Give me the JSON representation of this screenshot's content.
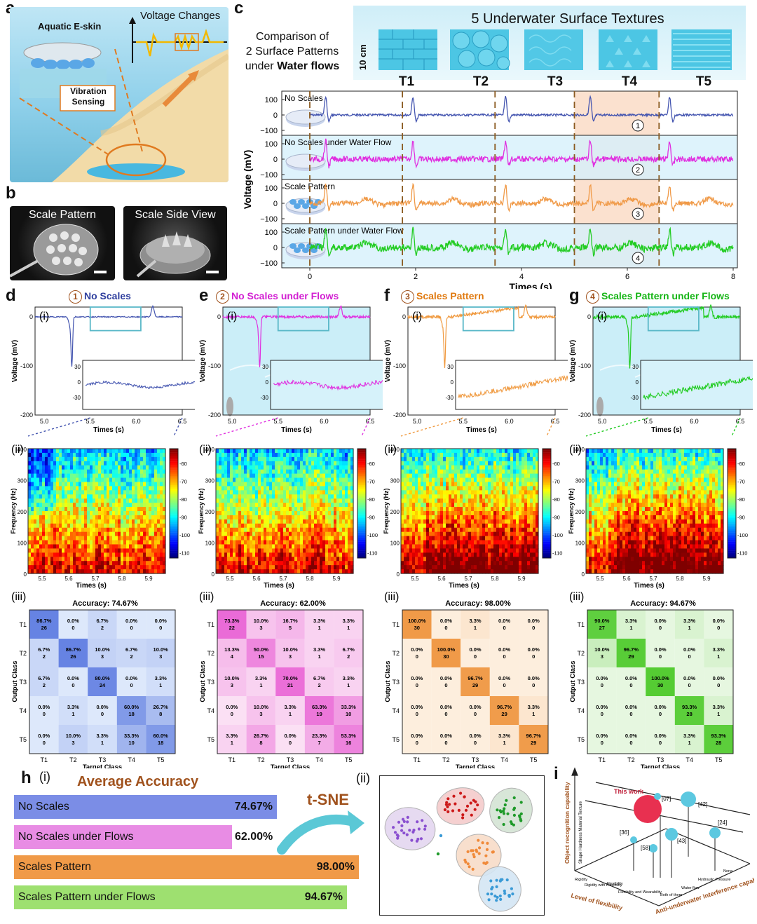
{
  "panel_letters": {
    "a": "a",
    "b": "b",
    "c": "c",
    "d": "d",
    "e": "e",
    "f": "f",
    "g": "g",
    "h": "h",
    "i": "i"
  },
  "panel_a": {
    "eskin_label": "Aquatic E-skin",
    "voltage_label": "Voltage Changes",
    "vibration_label": "Vibration\nSensing"
  },
  "panel_b": {
    "left_title": "Scale Pattern",
    "right_title": "Scale Side View"
  },
  "panel_c": {
    "comparison_text": [
      "Comparison of",
      "2 Surface Patterns",
      "under"
    ],
    "comparison_bold": "Water flows",
    "textures_title": "5  Underwater Surface Textures",
    "scale_label": "10 cm",
    "texture_labels": [
      "T1",
      "T2",
      "T3",
      "T4",
      "T5"
    ],
    "row_labels": [
      "No Scales",
      "No Scales under Water Flow",
      "Scale Pattern",
      "Scale Pattern under Water Flow"
    ],
    "row_numbers": [
      "1",
      "2",
      "3",
      "4"
    ],
    "y_ticks": [
      "100",
      "0",
      "−100"
    ],
    "x_ticks": [
      "0",
      "2",
      "4",
      "6",
      "8"
    ],
    "ylabel": "Voltage (mV)",
    "xlabel": "Times (s)"
  },
  "sub_panels": [
    {
      "letter": "d",
      "num": "1",
      "title": "No Scales",
      "color": "#2f3f9e",
      "line": "#4455b0",
      "inset_ticks": [
        "30",
        "0",
        "-30"
      ]
    },
    {
      "letter": "e",
      "num": "2",
      "title": "No Scales under  Flows",
      "color": "#d21fd2",
      "line": "#e030e0",
      "inset_ticks": [
        "30",
        "0",
        "-30"
      ]
    },
    {
      "letter": "f",
      "num": "3",
      "title": "Scales Pattern",
      "color": "#e07a10",
      "line": "#f09a40",
      "inset_ticks": [
        "30",
        "0",
        "-30"
      ]
    },
    {
      "letter": "g",
      "num": "4",
      "title": "Scales Pattern under  Flows",
      "color": "#16b516",
      "line": "#22cc22",
      "inset_ticks": [
        "30",
        "0",
        "-30"
      ]
    }
  ],
  "common": {
    "i": "(i)",
    "ii": "(ii)",
    "iii": "(iii)",
    "volt_ylabel": "Voltage (mV)",
    "volt_yticks": [
      "0",
      "-100",
      "-200"
    ],
    "volt_xticks": [
      "5.0",
      "5.5",
      "6.0",
      "6.5"
    ],
    "time_label": "Times (s)",
    "freq_label": "Frequency (Hz)",
    "freq_ticks": [
      "400",
      "300",
      "200",
      "100",
      "0"
    ],
    "spec_xticks": [
      "5.5",
      "5.6",
      "5.7",
      "5.8",
      "5.9"
    ],
    "cbar_ticks": [
      "-60",
      "-70",
      "-80",
      "-90",
      "-100",
      "-110"
    ],
    "cm_xlabel": "Target Class",
    "cm_ylabel": "Output Class",
    "classes": [
      "T1",
      "T2",
      "T3",
      "T4",
      "T5"
    ]
  },
  "chart_data": [
    {
      "type": "heatmap",
      "title": "Accuracy: 74.67%",
      "colors": [
        "#dde8fb",
        "#5a78e0"
      ],
      "percent": [
        [
          "86.7%",
          "0.0%",
          "6.7%",
          "0.0%",
          "0.0%"
        ],
        [
          "6.7%",
          "86.7%",
          "10.0%",
          "6.7%",
          "10.0%"
        ],
        [
          "6.7%",
          "0.0%",
          "80.0%",
          "0.0%",
          "3.3%"
        ],
        [
          "0.0%",
          "3.3%",
          "0.0%",
          "60.0%",
          "26.7%"
        ],
        [
          "0.0%",
          "10.0%",
          "3.3%",
          "33.3%",
          "60.0%"
        ]
      ],
      "counts": [
        [
          26,
          0,
          2,
          0,
          0
        ],
        [
          2,
          26,
          3,
          2,
          3
        ],
        [
          2,
          0,
          24,
          0,
          1
        ],
        [
          0,
          1,
          0,
          18,
          8
        ],
        [
          0,
          3,
          1,
          10,
          18
        ]
      ]
    },
    {
      "type": "heatmap",
      "title": "Accuracy: 62.00%",
      "colors": [
        "#fbe0f4",
        "#e64fd0"
      ],
      "percent": [
        [
          "73.3%",
          "10.0%",
          "16.7%",
          "3.3%",
          "3.3%"
        ],
        [
          "13.3%",
          "50.0%",
          "10.0%",
          "3.3%",
          "6.7%"
        ],
        [
          "10.0%",
          "3.3%",
          "70.0%",
          "6.7%",
          "3.3%"
        ],
        [
          "0.0%",
          "10.0%",
          "3.3%",
          "63.3%",
          "33.3%"
        ],
        [
          "3.3%",
          "26.7%",
          "0.0%",
          "23.3%",
          "53.3%"
        ]
      ],
      "counts": [
        [
          22,
          3,
          5,
          1,
          1
        ],
        [
          4,
          15,
          3,
          1,
          2
        ],
        [
          3,
          1,
          21,
          2,
          1
        ],
        [
          0,
          3,
          1,
          19,
          10
        ],
        [
          1,
          8,
          0,
          7,
          16
        ]
      ]
    },
    {
      "type": "heatmap",
      "title": "Accuracy: 98.00%",
      "colors": [
        "#fdeedd",
        "#f09a48"
      ],
      "percent": [
        [
          "100.0%",
          "0.0%",
          "3.3%",
          "0.0%",
          "0.0%"
        ],
        [
          "0.0%",
          "100.0%",
          "0.0%",
          "0.0%",
          "0.0%"
        ],
        [
          "0.0%",
          "0.0%",
          "96.7%",
          "0.0%",
          "0.0%"
        ],
        [
          "0.0%",
          "0.0%",
          "0.0%",
          "96.7%",
          "3.3%"
        ],
        [
          "0.0%",
          "0.0%",
          "0.0%",
          "3.3%",
          "96.7%"
        ]
      ],
      "counts": [
        [
          30,
          0,
          1,
          0,
          0
        ],
        [
          0,
          30,
          0,
          0,
          0
        ],
        [
          0,
          0,
          29,
          0,
          0
        ],
        [
          0,
          0,
          0,
          29,
          1
        ],
        [
          0,
          0,
          0,
          1,
          29
        ]
      ]
    },
    {
      "type": "heatmap",
      "title": "Accuracy: 94.67%",
      "colors": [
        "#e6f7e0",
        "#55cc33"
      ],
      "percent": [
        [
          "90.0%",
          "3.3%",
          "0.0%",
          "3.3%",
          "0.0%"
        ],
        [
          "10.0%",
          "96.7%",
          "0.0%",
          "0.0%",
          "3.3%"
        ],
        [
          "0.0%",
          "0.0%",
          "100.0%",
          "0.0%",
          "0.0%"
        ],
        [
          "0.0%",
          "0.0%",
          "0.0%",
          "93.3%",
          "3.3%"
        ],
        [
          "0.0%",
          "0.0%",
          "0.0%",
          "3.3%",
          "93.3%"
        ]
      ],
      "counts": [
        [
          27,
          1,
          0,
          1,
          0
        ],
        [
          3,
          29,
          0,
          0,
          1
        ],
        [
          0,
          0,
          30,
          0,
          0
        ],
        [
          0,
          0,
          0,
          28,
          1
        ],
        [
          0,
          0,
          0,
          1,
          28
        ]
      ]
    },
    {
      "type": "bar",
      "title": "Average Accuracy",
      "categories": [
        "No Scales",
        "No Scales under  Flows",
        "Scales Pattern",
        "Scales Pattern under  Flows"
      ],
      "values": [
        74.67,
        62.0,
        98.0,
        94.67
      ],
      "labels": [
        "74.67%",
        "62.00%",
        "98.00%",
        "94.67%"
      ],
      "colors": [
        "#7b8de6",
        "#e88ce4",
        "#f09a48",
        "#9ee070"
      ]
    }
  ],
  "panel_h": {
    "i": "(i)",
    "ii": "(ii)",
    "tsne": "t-SNE"
  },
  "panel_i": {
    "zlabel": "Object recognition capability",
    "zticks": "Shape  Hardness  Material  Texture",
    "xlabel": "Level of flexibility",
    "xticks": [
      "Rigidity",
      "Rigidity with Flexibility",
      "Flexibility",
      "Flexibility and Wearability"
    ],
    "ylabel": "Anti-underwater interference capability",
    "yticks": [
      "Both of them",
      "Water flow",
      "Hydraulic Pressure",
      "None"
    ],
    "this_work": "This work",
    "refs": [
      "[07]",
      "[42]",
      "[24]",
      "[36]",
      "[43]",
      "[58]"
    ]
  }
}
